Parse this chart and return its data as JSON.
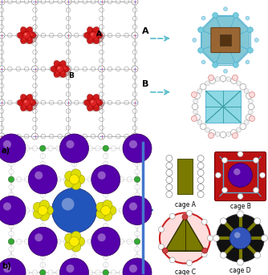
{
  "fig_width": 3.34,
  "fig_height": 3.43,
  "dpi": 100,
  "background_color": "#ffffff",
  "cage_A_text": "cage A",
  "cage_B_text": "cage B",
  "cage_C_text": "cage C",
  "cage_D_text": "cage D",
  "arrow_color": "#5bc8d4",
  "blue_line_color": "#4477cc",
  "blue_arrow_color": "#4488cc",
  "cage_olive": "#7a7a00",
  "cage_red": "#cc2222",
  "sphere_purple": "#5500aa",
  "sphere_blue": "#2244cc",
  "sphere_yellow": "#dddd00",
  "mof_red": "#cc2222",
  "mof_blue": "#2244cc",
  "mof_gray": "#999999",
  "cyan_color": "#55bbcc",
  "brown_color": "#996633"
}
